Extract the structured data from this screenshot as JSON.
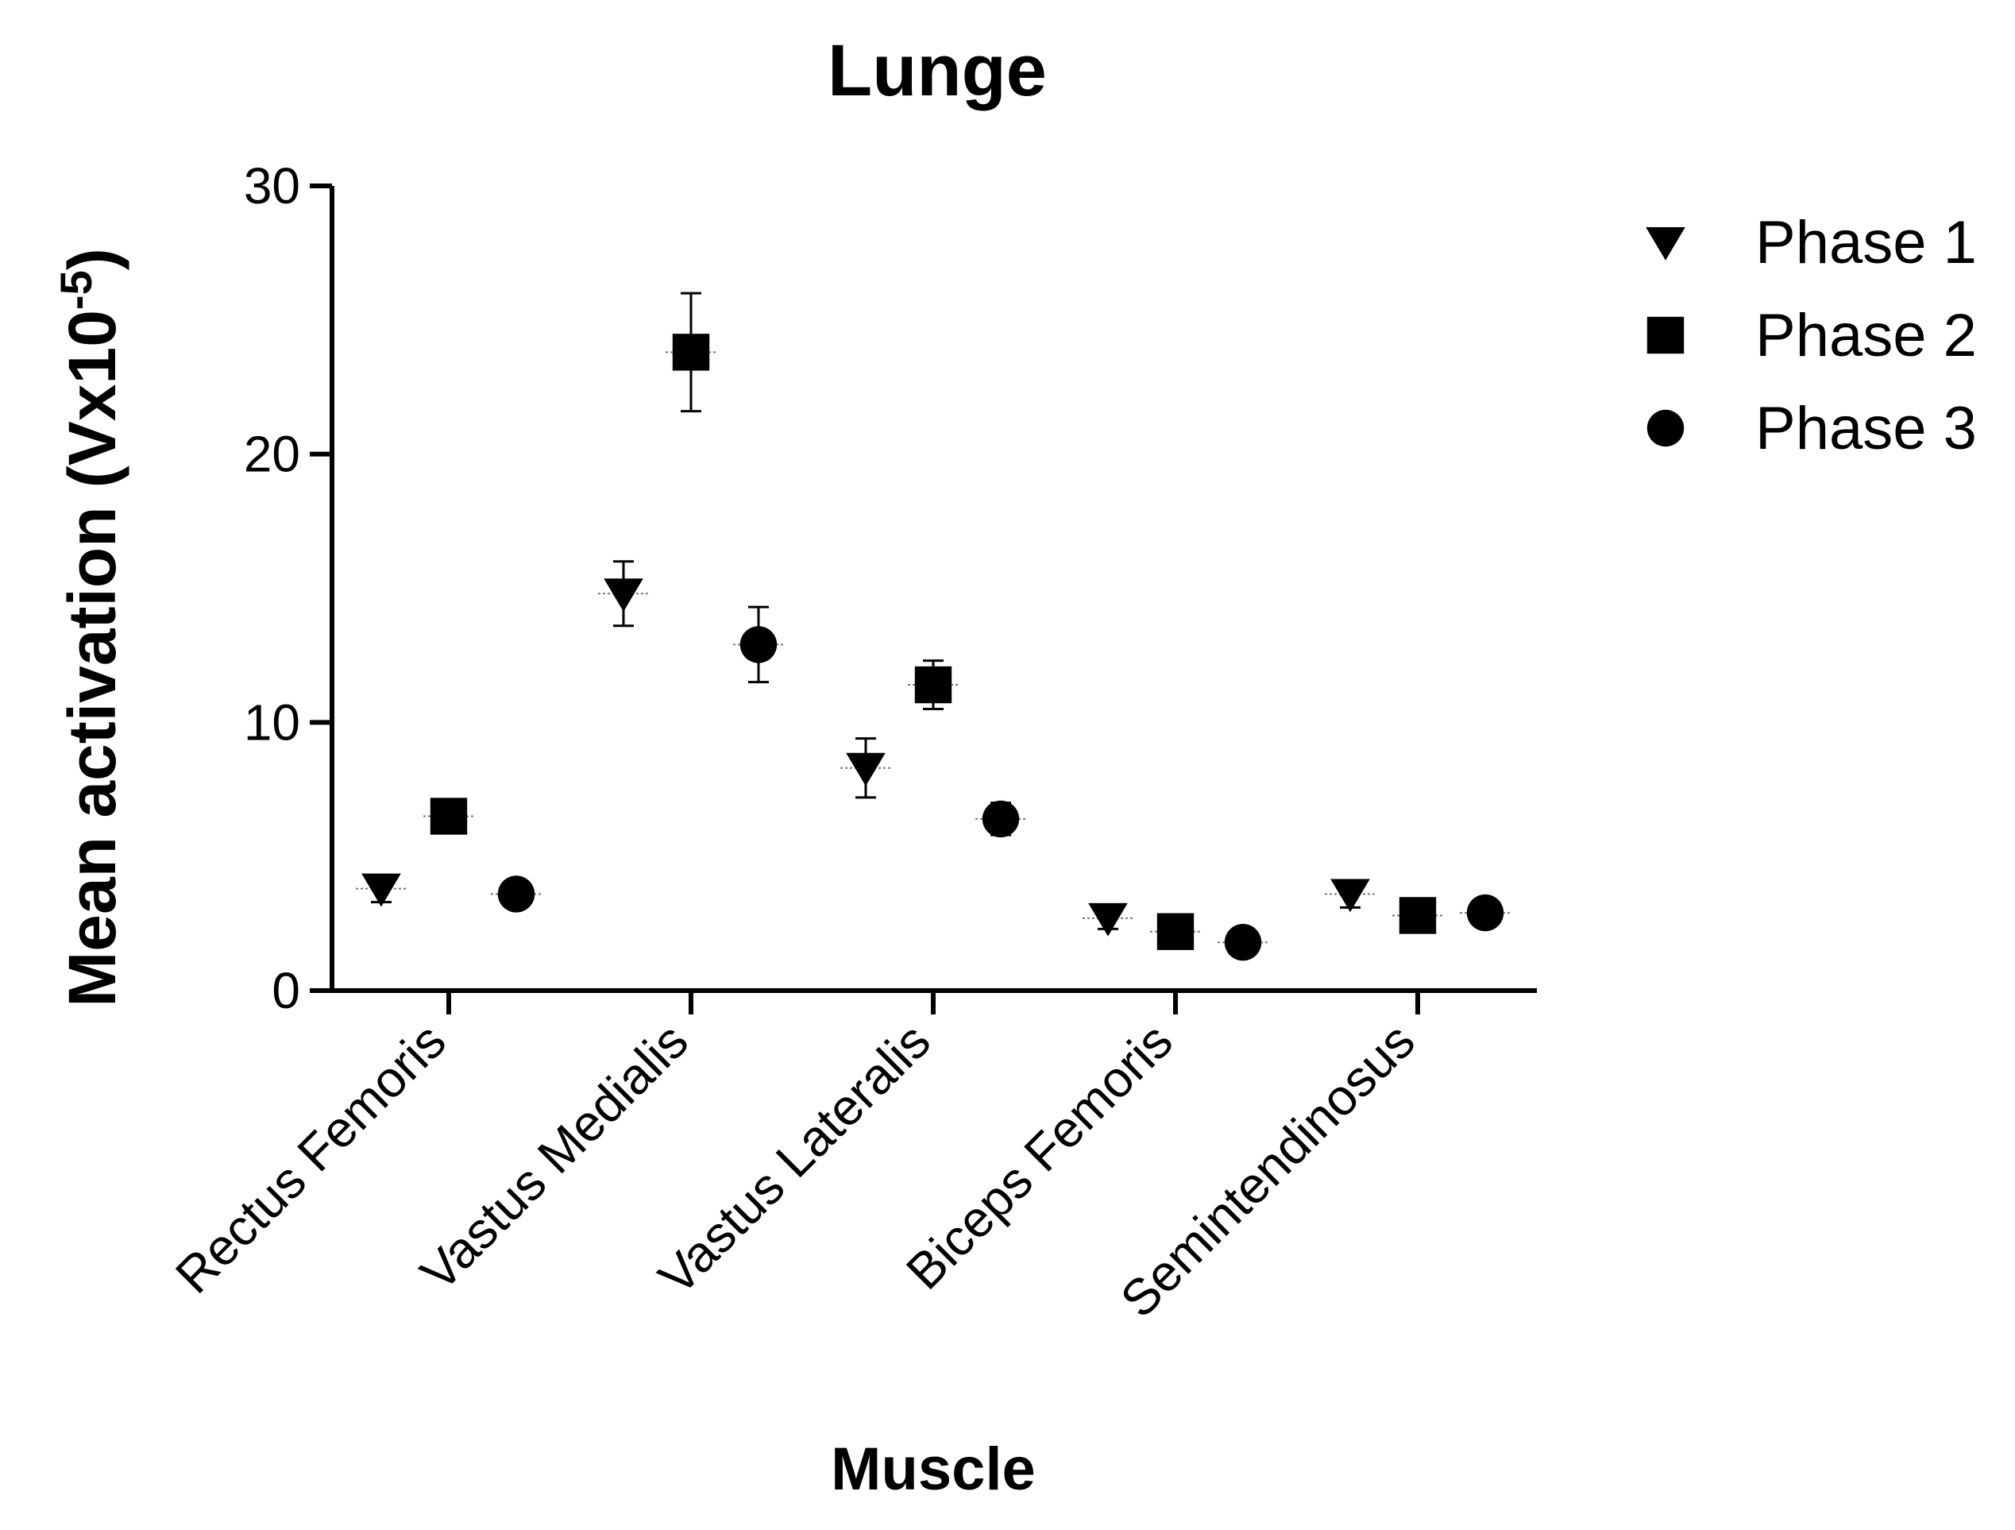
{
  "chart_data": {
    "type": "scatter",
    "title": "Lunge",
    "xlabel": "Muscle",
    "ylabel": "Mean activation (Vx10",
    "ylabel_superscript": "-5",
    "ylabel_close": ")",
    "ylim": [
      0,
      30
    ],
    "yticks": [
      "0",
      "10",
      "20",
      "30"
    ],
    "grid": false,
    "legend_position": "top-right",
    "categories": [
      "Rectus Femoris",
      "Vastus Medialis",
      "Vastus Lateralis",
      "Biceps Femoris",
      "Semintendinosus"
    ],
    "series": [
      {
        "name": "Phase 1",
        "marker": "triangle-down",
        "values": [
          3.8,
          14.8,
          8.3,
          2.7,
          3.6
        ],
        "errors": [
          0.5,
          1.2,
          1.1,
          0.4,
          0.5
        ]
      },
      {
        "name": "Phase 2",
        "marker": "square",
        "values": [
          6.5,
          23.8,
          11.4,
          2.2,
          2.8
        ],
        "errors": [
          0.3,
          2.2,
          0.9,
          0.2,
          0.2
        ]
      },
      {
        "name": "Phase 3",
        "marker": "circle",
        "values": [
          3.6,
          12.9,
          6.4,
          1.8,
          2.9
        ],
        "errors": [
          0.2,
          1.4,
          0.6,
          0.2,
          0.2
        ]
      }
    ]
  }
}
